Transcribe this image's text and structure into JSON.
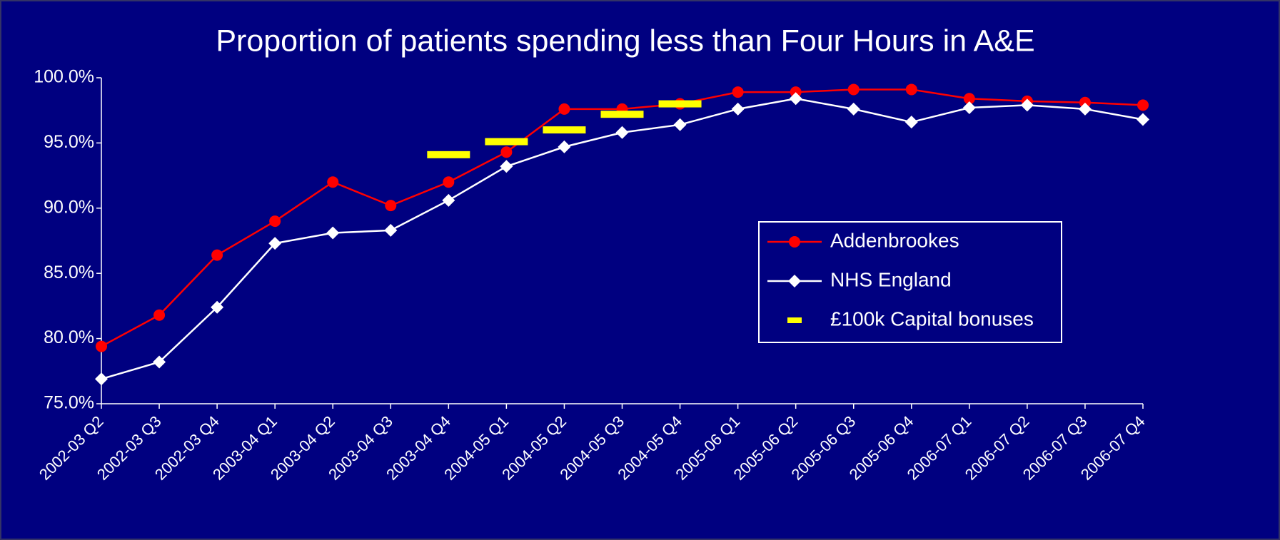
{
  "chart_data": {
    "type": "line",
    "title": "Proportion of patients spending less than Four Hours in A&E",
    "categories": [
      "2002-03 Q2",
      "2002-03 Q3",
      "2002-03 Q4",
      "2003-04 Q1",
      "2003-04 Q2",
      "2003-04 Q3",
      "2003-04 Q4",
      "2004-05 Q1",
      "2004-05 Q2",
      "2004-05 Q3",
      "2004-05 Q4",
      "2005-06 Q1",
      "2005-06 Q2",
      "2005-06 Q3",
      "2005-06 Q4",
      "2006-07 Q1",
      "2006-07 Q2",
      "2006-07 Q3",
      "2006-07 Q4"
    ],
    "series": [
      {
        "name": "Addenbrookes",
        "color": "#ff0000",
        "marker": "circle",
        "values": [
          79.4,
          81.8,
          86.4,
          89.0,
          92.0,
          90.2,
          92.0,
          94.3,
          97.6,
          97.6,
          98.0,
          98.9,
          98.9,
          99.1,
          99.1,
          98.4,
          98.2,
          98.1,
          97.9
        ]
      },
      {
        "name": "NHS England",
        "color": "#ffffff",
        "marker": "diamond",
        "values": [
          76.9,
          78.2,
          82.4,
          87.3,
          88.1,
          88.3,
          90.6,
          93.2,
          94.7,
          95.8,
          96.4,
          97.6,
          98.4,
          97.6,
          96.6,
          97.7,
          97.9,
          97.6,
          96.8
        ]
      },
      {
        "name": "£100k Capital bonuses",
        "color": "#ffff00",
        "marker": "dash",
        "values": [
          null,
          null,
          null,
          null,
          null,
          null,
          94.1,
          95.1,
          96.0,
          97.2,
          98.0,
          null,
          null,
          null,
          null,
          null,
          null,
          null,
          null
        ]
      }
    ],
    "ylim": [
      75,
      100
    ],
    "yticks": [
      {
        "value": 75,
        "label": "75.0%"
      },
      {
        "value": 80,
        "label": "80.0%"
      },
      {
        "value": 85,
        "label": "85.0%"
      },
      {
        "value": 90,
        "label": "90.0%"
      },
      {
        "value": 95,
        "label": "95.0%"
      },
      {
        "value": 100,
        "label": "100.0%"
      }
    ],
    "grid": false
  }
}
